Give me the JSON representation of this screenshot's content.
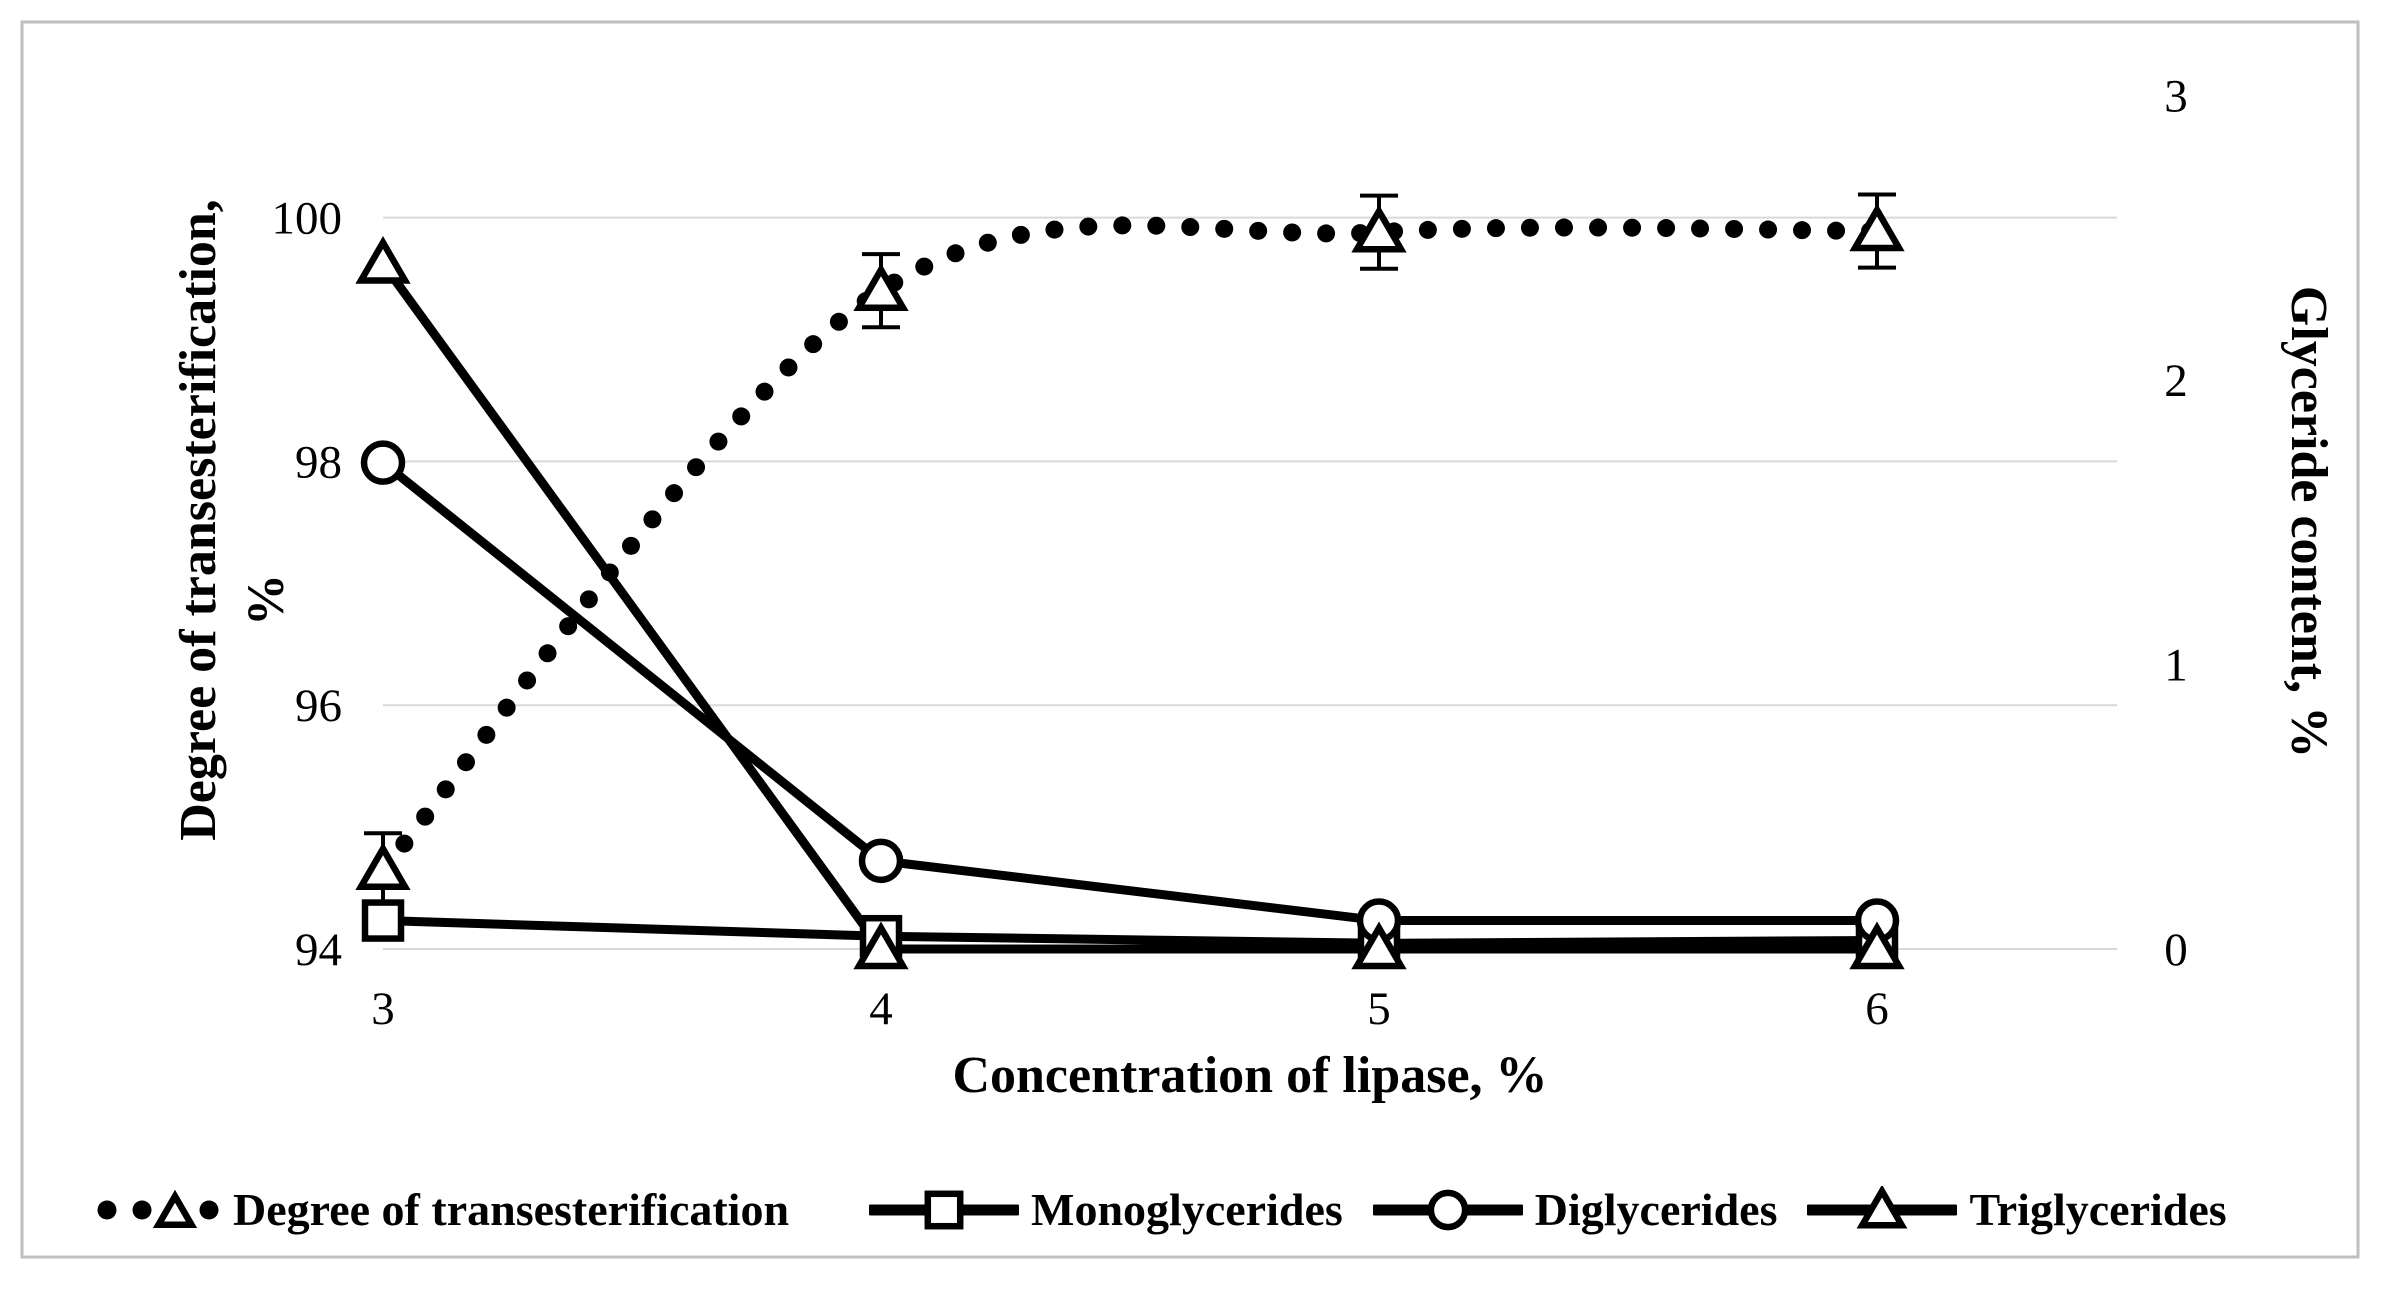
{
  "colors": {
    "ink": "#000000",
    "grid": "#d9d9d9",
    "frame": "#bfbfbf",
    "background": "#ffffff"
  },
  "chart_data": {
    "type": "line",
    "x_categories": [
      3,
      4,
      5,
      6
    ],
    "x_axis": {
      "title": "Concentration of lipase, %",
      "tick_labels": [
        "3",
        "4",
        "5",
        "6"
      ]
    },
    "left_axis": {
      "title_lines": [
        "Degree of transesterification,",
        "%"
      ],
      "tick_labels": [
        "94",
        "96",
        "98",
        "100"
      ],
      "ticks": [
        94,
        96,
        98,
        100
      ],
      "range": [
        94,
        101
      ]
    },
    "right_axis": {
      "title": "Glyceride content, %",
      "tick_labels": [
        "0",
        "1",
        "2",
        "3"
      ],
      "ticks": [
        0,
        1,
        2,
        3
      ],
      "range": [
        0,
        3
      ]
    },
    "grid": "horizontal",
    "legend_position": "bottom",
    "series": [
      {
        "name": "Degree of transesterification",
        "axis": "left",
        "marker": "triangle",
        "line_style": "dotted",
        "smooth": true,
        "values": [
          94.65,
          99.4,
          99.88,
          99.89
        ],
        "error_bars": [
          0.3,
          0.3,
          0.3,
          0.3
        ]
      },
      {
        "name": "Monoglycerides",
        "axis": "right",
        "marker": "square",
        "line_style": "solid",
        "smooth": false,
        "values": [
          0.1,
          0.045,
          0.02,
          0.03
        ]
      },
      {
        "name": "Diglycerides",
        "axis": "right",
        "marker": "circle",
        "line_style": "solid",
        "smooth": false,
        "values": [
          1.71,
          0.31,
          0.1,
          0.1
        ]
      },
      {
        "name": "Triglycerides",
        "axis": "right",
        "marker": "triangle",
        "line_style": "solid",
        "smooth": false,
        "values": [
          2.41,
          0,
          0,
          0
        ]
      }
    ]
  }
}
